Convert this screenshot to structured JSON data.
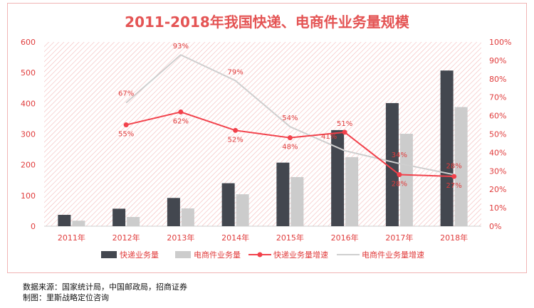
{
  "chart_data": {
    "type": "bar",
    "title": "2011-2018年我国快递、电商件业务量规模",
    "categories": [
      "2011年",
      "2012年",
      "2013年",
      "2014年",
      "2015年",
      "2016年",
      "2017年",
      "2018年"
    ],
    "y_left": {
      "ylim": [
        0,
        600
      ],
      "ticks": [
        "0",
        "100",
        "200",
        "300",
        "400",
        "500",
        "600"
      ]
    },
    "y_right": {
      "ylim": [
        0,
        100
      ],
      "ticks": [
        "0%",
        "10%",
        "20%",
        "30%",
        "40%",
        "50%",
        "60%",
        "70%",
        "80%",
        "90%",
        "100%"
      ]
    },
    "series": [
      {
        "name": "快递业务量",
        "type": "bar",
        "axis": "left",
        "values": [
          37,
          57,
          92,
          140,
          207,
          313,
          401,
          507
        ]
      },
      {
        "name": "电商件业务量",
        "type": "bar",
        "axis": "left",
        "values": [
          18,
          30,
          58,
          104,
          160,
          225,
          301,
          388
        ]
      },
      {
        "name": "快递业务量增速",
        "type": "line",
        "axis": "right",
        "values": [
          null,
          55,
          62,
          52,
          48,
          51,
          28,
          27
        ],
        "labels": [
          "",
          "55%",
          "62%",
          "52%",
          "48%",
          "51%",
          "28%",
          "27%"
        ]
      },
      {
        "name": "电商件业务量增速",
        "type": "line",
        "axis": "right",
        "values": [
          null,
          67,
          93,
          79,
          54,
          41,
          34,
          28
        ],
        "labels": [
          "",
          "67%",
          "93%",
          "79%",
          "54%",
          "41%",
          "34%",
          "28%"
        ]
      }
    ],
    "legend_position": "bottom",
    "grid": false
  },
  "colors": {
    "title": "#e45454",
    "axis_text": "#e03c3c",
    "express_bar": "#43474f",
    "ecommerce_bar": "#cccccc",
    "express_line": "#f2414b",
    "ecommerce_line": "#cfcfcf",
    "hatch": "#f3b9b9",
    "border": "#f0b4b4"
  },
  "footer": {
    "source": "数据来源：国家统计局，中国邮政局，招商证券",
    "maker": "制图：里斯战略定位咨询"
  }
}
